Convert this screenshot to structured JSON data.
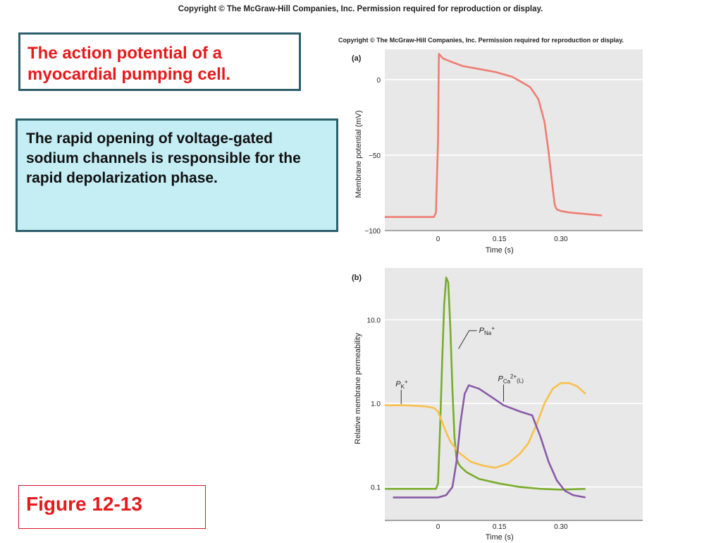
{
  "header": {
    "copyright": "Copyright © The McGraw-Hill Companies, Inc. Permission required for reproduction or display."
  },
  "title_box": {
    "text": "The action potential of a myocardial pumping cell."
  },
  "description_box": {
    "text": "The rapid opening of voltage-gated sodium channels is responsible for the rapid depolarization phase."
  },
  "figure_label": {
    "text": "Figure 12-13"
  },
  "figure_copyright": "Copyright © The McGraw-Hill Companies, Inc. Permission required for reproduction or display.",
  "colors": {
    "action_potential": "#ef7d72",
    "p_na": "#79ac2a",
    "p_k": "#f8c04c",
    "p_ca": "#8a5aa8",
    "plot_bg": "#e8e8e8"
  },
  "chart_data": [
    {
      "type": "line",
      "panel_label": "(a)",
      "xlabel": "Time (s)",
      "ylabel": "Membrane potential (mV)",
      "xlim": [
        -0.13,
        0.5
      ],
      "ylim": [
        -100,
        20
      ],
      "xticks": [
        {
          "value": 0,
          "label": "0"
        },
        {
          "value": 0.15,
          "label": "0.15"
        },
        {
          "value": 0.3,
          "label": "0.30"
        }
      ],
      "yticks": [
        {
          "value": 0,
          "label": "0"
        },
        {
          "value": -50,
          "label": "−50"
        },
        {
          "value": -100,
          "label": "−100"
        }
      ],
      "grid": true,
      "series": [
        {
          "color_key": "action_potential",
          "x": [
            -0.13,
            -0.03,
            -0.01,
            -0.005,
            0.0,
            0.002,
            0.012,
            0.03,
            0.06,
            0.1,
            0.14,
            0.18,
            0.2,
            0.225,
            0.245,
            0.26,
            0.27,
            0.28,
            0.285,
            0.29,
            0.3,
            0.32,
            0.36,
            0.4
          ],
          "y": [
            -91,
            -91,
            -91,
            -88,
            -40,
            17,
            14,
            12,
            9,
            7,
            5,
            2,
            -1,
            -5,
            -13,
            -28,
            -48,
            -72,
            -83,
            -86,
            -87,
            -88,
            -89,
            -90
          ]
        }
      ]
    },
    {
      "type": "line",
      "panel_label": "(b)",
      "xlabel": "Time (s)",
      "ylabel": "Relative membrane permeability",
      "xlim": [
        -0.13,
        0.5
      ],
      "ylim_log10": [
        -1.4,
        1.62
      ],
      "yscale": "log",
      "xticks": [
        {
          "value": 0,
          "label": "0"
        },
        {
          "value": 0.15,
          "label": "0.15"
        },
        {
          "value": 0.3,
          "label": "0.30"
        }
      ],
      "yticks": [
        {
          "value": 10,
          "label": "10.0"
        },
        {
          "value": 1,
          "label": "1.0"
        },
        {
          "value": 0.1,
          "label": "0.1"
        }
      ],
      "grid": true,
      "annotations": [
        {
          "series": "p_na",
          "label": "P",
          "sub": "Na",
          "sup": "+",
          "x": 0.1,
          "y": 7.0
        },
        {
          "series": "p_k",
          "label": "P",
          "sub": "K",
          "sup": "+",
          "x": -0.1,
          "y": 1.6
        },
        {
          "series": "p_ca",
          "label": "P",
          "sub": "Ca",
          "sup": "2+",
          "tail": "(L)",
          "x": 0.14,
          "y": 1.85
        }
      ],
      "series": [
        {
          "color_key": "p_na",
          "x": [
            -0.13,
            -0.02,
            -0.005,
            0.0,
            0.005,
            0.01,
            0.015,
            0.02,
            0.025,
            0.03,
            0.035,
            0.04,
            0.045,
            0.05,
            0.055,
            0.07,
            0.1,
            0.15,
            0.2,
            0.25,
            0.3,
            0.36
          ],
          "y": [
            0.095,
            0.095,
            0.095,
            0.11,
            0.5,
            3.0,
            15.0,
            32.0,
            28.0,
            8.0,
            1.5,
            0.4,
            0.22,
            0.19,
            0.175,
            0.15,
            0.125,
            0.11,
            0.1,
            0.095,
            0.093,
            0.095
          ]
        },
        {
          "color_key": "p_k",
          "x": [
            -0.13,
            -0.08,
            -0.03,
            -0.01,
            0.0,
            0.01,
            0.02,
            0.03,
            0.05,
            0.08,
            0.11,
            0.14,
            0.17,
            0.2,
            0.22,
            0.24,
            0.26,
            0.28,
            0.3,
            0.32,
            0.34,
            0.36
          ],
          "y": [
            0.95,
            0.95,
            0.92,
            0.88,
            0.8,
            0.6,
            0.45,
            0.35,
            0.26,
            0.2,
            0.18,
            0.17,
            0.19,
            0.25,
            0.33,
            0.55,
            1.0,
            1.5,
            1.75,
            1.75,
            1.6,
            1.3
          ]
        },
        {
          "color_key": "p_ca",
          "x": [
            -0.11,
            -0.03,
            0.0,
            0.02,
            0.035,
            0.045,
            0.055,
            0.065,
            0.075,
            0.1,
            0.13,
            0.16,
            0.2,
            0.23,
            0.25,
            0.27,
            0.29,
            0.31,
            0.33,
            0.36
          ],
          "y": [
            0.075,
            0.075,
            0.075,
            0.08,
            0.1,
            0.2,
            0.6,
            1.3,
            1.65,
            1.5,
            1.2,
            0.95,
            0.8,
            0.72,
            0.4,
            0.2,
            0.12,
            0.09,
            0.08,
            0.075
          ]
        }
      ]
    }
  ]
}
